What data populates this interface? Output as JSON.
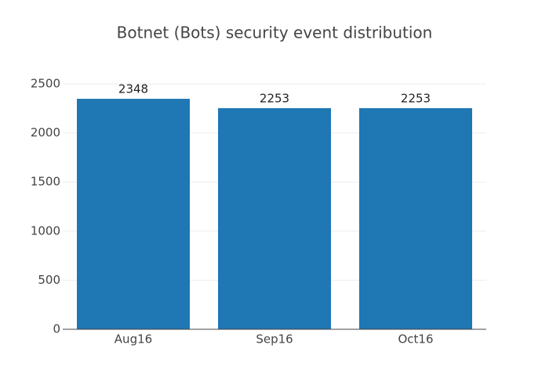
{
  "chart_data": {
    "type": "bar",
    "title": "Botnet (Bots) security event distribution",
    "categories": [
      "Aug16",
      "Sep16",
      "Oct16"
    ],
    "values": [
      2348,
      2253,
      2253
    ],
    "color": "#1f77b4",
    "ylim": [
      0,
      2500
    ],
    "yticks": [
      0,
      500,
      1000,
      1500,
      2000,
      2500
    ],
    "grid": true
  }
}
